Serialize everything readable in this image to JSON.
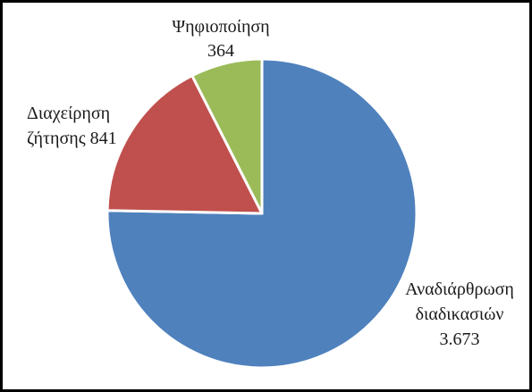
{
  "chart_data": {
    "type": "pie",
    "title": "",
    "start_angle_deg": 0,
    "direction": "clockwise",
    "slices": [
      {
        "name": "Αναδιάρθρωση διαδικασιών",
        "value": 3673,
        "label_lines": [
          "Αναδιάρθρωση",
          "διαδικασιών",
          "3.673"
        ],
        "color": "#4f81bd"
      },
      {
        "name": "Διαχείρηση ζήτησης",
        "value": 841,
        "label_lines": [
          "Διαχείρηση",
          "ζήτησης 841"
        ],
        "color": "#c0504d"
      },
      {
        "name": "Ψηφιοποίηση",
        "value": 364,
        "label_lines": [
          "Ψηφιοποίηση",
          "364"
        ],
        "color": "#9bbb59"
      }
    ],
    "slice_border_color": "#ffffff",
    "legend": "none"
  }
}
